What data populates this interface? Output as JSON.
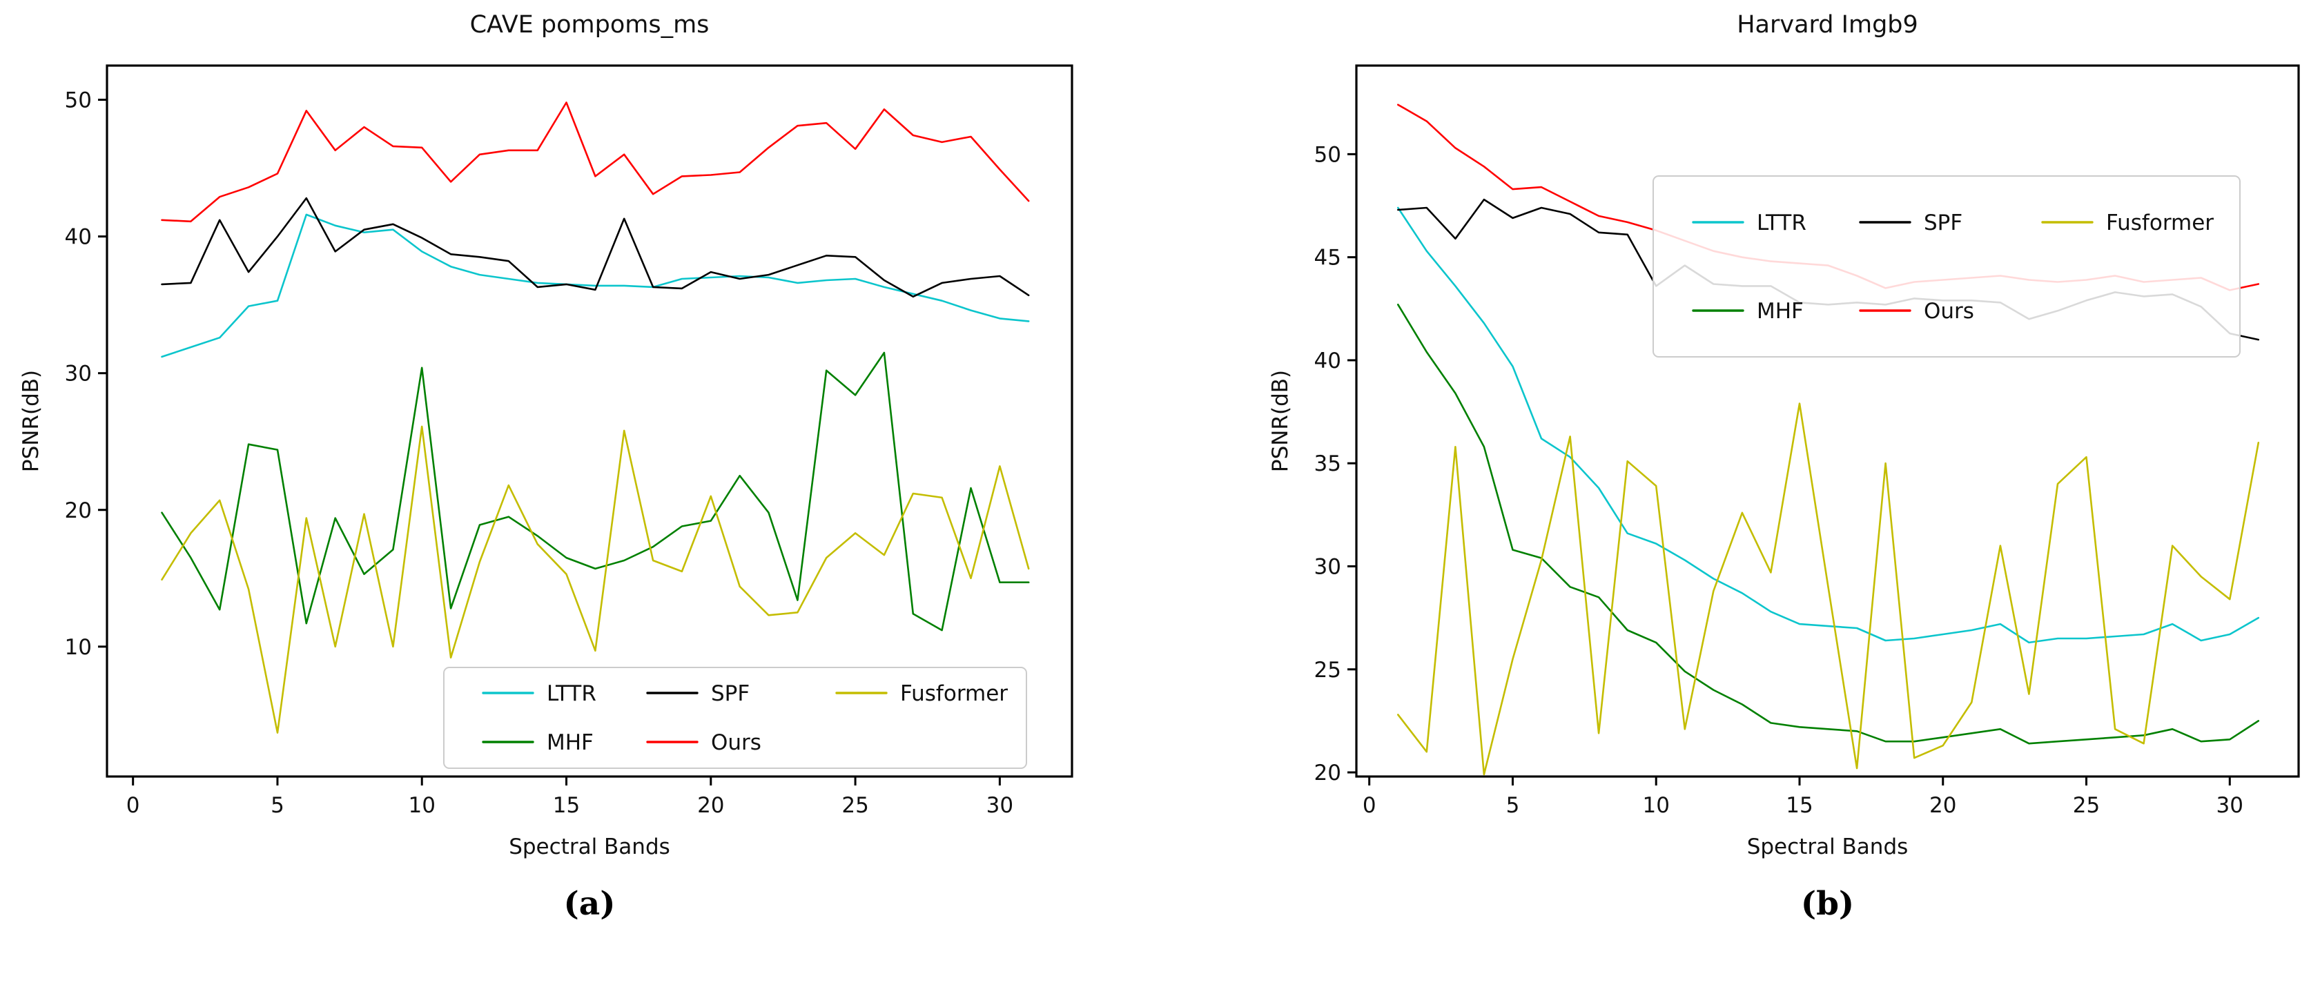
{
  "figure": {
    "caption_a": "(a)",
    "caption_b": "(b)"
  },
  "colors": {
    "LTTR": "#0cc5cc",
    "MHF": "#008000",
    "SPF": "#000000",
    "Ours": "#ff0000",
    "Fusformer": "#c4bd00",
    "axis": "#000000",
    "legend_edge": "#cccccc",
    "text": "#111111"
  },
  "chart_data": [
    {
      "type": "line",
      "title": "CAVE pompoms_ms",
      "xlabel": "Spectral Bands",
      "ylabel": "PSNR(dB)",
      "x_from": 1,
      "x_to": 31,
      "xlim": [
        -0.9,
        32.5
      ],
      "ylim": [
        0.5,
        52.5
      ],
      "xticks": [
        0,
        5,
        10,
        15,
        20,
        25,
        30
      ],
      "yticks": [
        10,
        20,
        30,
        40,
        50
      ],
      "grid": false,
      "legend_position": "lower right",
      "series": [
        {
          "name": "LTTR",
          "values": [
            31.2,
            31.9,
            32.6,
            34.9,
            35.3,
            41.6,
            40.8,
            40.3,
            40.5,
            38.9,
            37.8,
            37.2,
            36.9,
            36.6,
            36.5,
            36.4,
            36.4,
            36.3,
            36.9,
            37.0,
            37.1,
            37.0,
            36.6,
            36.8,
            36.9,
            36.3,
            35.8,
            35.3,
            34.6,
            34.0,
            33.8
          ]
        },
        {
          "name": "MHF",
          "values": [
            19.8,
            16.5,
            12.7,
            24.8,
            24.4,
            11.7,
            19.4,
            15.3,
            17.1,
            30.4,
            12.8,
            18.9,
            19.5,
            18.1,
            16.5,
            15.7,
            16.3,
            17.3,
            18.8,
            19.2,
            22.5,
            19.8,
            13.4,
            30.2,
            28.4,
            31.5,
            12.4,
            11.2,
            21.6,
            14.7,
            14.7
          ]
        },
        {
          "name": "SPF",
          "values": [
            36.5,
            36.6,
            41.2,
            37.4,
            40.0,
            42.8,
            38.9,
            40.5,
            40.9,
            39.9,
            38.7,
            38.5,
            38.2,
            36.3,
            36.5,
            36.1,
            41.3,
            36.3,
            36.2,
            37.4,
            36.9,
            37.2,
            37.9,
            38.6,
            38.5,
            36.8,
            35.6,
            36.6,
            36.9,
            37.1,
            35.7
          ]
        },
        {
          "name": "Ours",
          "values": [
            41.2,
            41.1,
            42.9,
            43.6,
            44.6,
            49.2,
            46.3,
            48.0,
            46.6,
            46.5,
            44.0,
            46.0,
            46.3,
            46.3,
            49.8,
            44.4,
            46.0,
            43.1,
            44.4,
            44.5,
            44.7,
            46.5,
            48.1,
            48.3,
            46.4,
            49.3,
            47.4,
            46.9,
            47.3,
            44.9,
            42.6
          ]
        },
        {
          "name": "Fusformer",
          "values": [
            14.9,
            18.3,
            20.7,
            14.2,
            3.7,
            19.4,
            10.0,
            19.7,
            10.0,
            26.1,
            9.2,
            16.2,
            21.8,
            17.5,
            15.3,
            9.7,
            25.8,
            16.3,
            15.5,
            21.0,
            14.4,
            12.3,
            12.5,
            16.5,
            18.3,
            16.7,
            21.2,
            20.9,
            15.0,
            23.2,
            15.7
          ]
        }
      ]
    },
    {
      "type": "line",
      "title": "Harvard Imgb9",
      "xlabel": "Spectral Bands",
      "ylabel": "PSNR(dB)",
      "x_from": 1,
      "x_to": 31,
      "xlim": [
        -0.45,
        32.4
      ],
      "ylim": [
        19.8,
        54.3
      ],
      "xticks": [
        0,
        5,
        10,
        15,
        20,
        25,
        30
      ],
      "yticks": [
        20,
        25,
        30,
        35,
        40,
        45,
        50
      ],
      "grid": false,
      "legend_position": "upper center",
      "series": [
        {
          "name": "LTTR",
          "values": [
            47.4,
            45.3,
            43.6,
            41.8,
            39.7,
            36.2,
            35.3,
            33.8,
            31.6,
            31.1,
            30.3,
            29.4,
            28.7,
            27.8,
            27.2,
            27.1,
            27.0,
            26.4,
            26.5,
            26.7,
            26.9,
            27.2,
            26.3,
            26.5,
            26.5,
            26.6,
            26.7,
            27.2,
            26.4,
            26.7,
            27.5
          ]
        },
        {
          "name": "MHF",
          "values": [
            42.7,
            40.4,
            38.4,
            35.8,
            30.8,
            30.4,
            29.0,
            28.5,
            26.9,
            26.3,
            24.9,
            24.0,
            23.3,
            22.4,
            22.2,
            22.1,
            22.0,
            21.5,
            21.5,
            21.7,
            21.9,
            22.1,
            21.4,
            21.5,
            21.6,
            21.7,
            21.8,
            22.1,
            21.5,
            21.6,
            22.5
          ]
        },
        {
          "name": "SPF",
          "values": [
            47.3,
            47.4,
            45.9,
            47.8,
            46.9,
            47.4,
            47.1,
            46.2,
            46.1,
            43.6,
            44.6,
            43.7,
            43.6,
            43.6,
            42.8,
            42.7,
            42.8,
            42.7,
            43.0,
            42.9,
            42.9,
            42.8,
            42.0,
            42.4,
            42.9,
            43.3,
            43.1,
            43.2,
            42.6,
            41.3,
            41.0
          ]
        },
        {
          "name": "Ours",
          "values": [
            52.4,
            51.6,
            50.3,
            49.4,
            48.3,
            48.4,
            47.7,
            47.0,
            46.7,
            46.3,
            45.8,
            45.3,
            45.0,
            44.8,
            44.7,
            44.6,
            44.1,
            43.5,
            43.8,
            43.9,
            44.0,
            44.1,
            43.9,
            43.8,
            43.9,
            44.1,
            43.8,
            43.9,
            44.0,
            43.4,
            43.7
          ]
        },
        {
          "name": "Fusformer",
          "values": [
            22.8,
            21.0,
            35.8,
            19.9,
            25.5,
            30.3,
            36.3,
            21.9,
            35.1,
            33.9,
            22.1,
            28.8,
            32.6,
            29.7,
            37.9,
            29.0,
            20.2,
            35.0,
            20.7,
            21.3,
            23.4,
            31.0,
            23.8,
            34.0,
            35.3,
            22.1,
            21.4,
            31.0,
            29.5,
            28.4,
            36.0
          ]
        }
      ]
    }
  ]
}
